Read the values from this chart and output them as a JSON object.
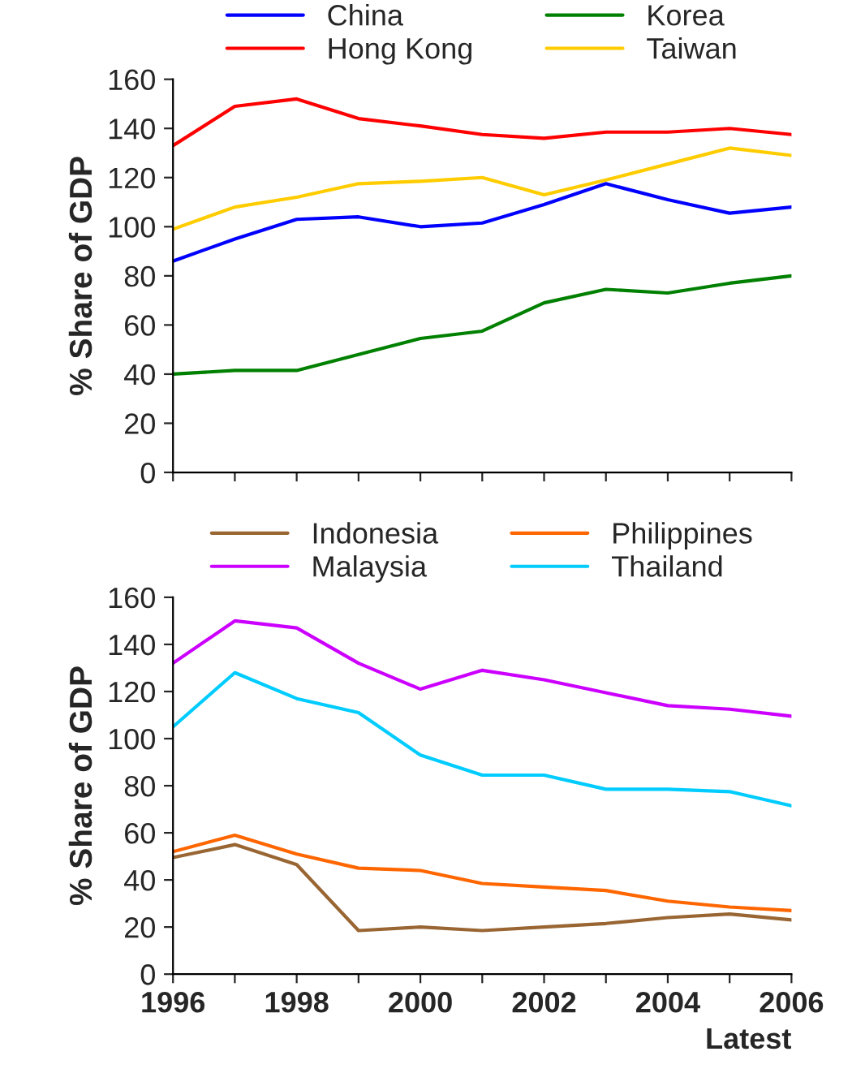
{
  "chart_data": [
    {
      "type": "line",
      "ylabel": "% Share of GDP",
      "x": [
        1996,
        1997,
        1998,
        1999,
        2000,
        2001,
        2002,
        2003,
        2004,
        2005,
        2006
      ],
      "xlim": [
        1996,
        2006
      ],
      "xticks": [
        {
          "value": 1996,
          "label": null
        },
        {
          "value": 1997,
          "label": null
        },
        {
          "value": 1998,
          "label": null
        },
        {
          "value": 1999,
          "label": null
        },
        {
          "value": 2000,
          "label": null
        },
        {
          "value": 2001,
          "label": null
        },
        {
          "value": 2002,
          "label": null
        },
        {
          "value": 2003,
          "label": null
        },
        {
          "value": 2004,
          "label": null
        },
        {
          "value": 2005,
          "label": null
        },
        {
          "value": 2006,
          "label": null
        }
      ],
      "ylim": [
        0,
        160
      ],
      "yticks": [
        0,
        20,
        40,
        60,
        80,
        100,
        120,
        140,
        160
      ],
      "tick_labels": "y",
      "legend": "top",
      "grid": false,
      "series": [
        {
          "name": "China",
          "color": "#0000ff",
          "values": [
            86,
            95,
            103,
            104,
            100,
            101.5,
            109,
            117.5,
            111,
            105.5,
            108
          ]
        },
        {
          "name": "Hong Kong",
          "color": "#ff0000",
          "values": [
            133,
            149,
            152,
            144,
            141,
            137.5,
            136,
            138.5,
            138.5,
            140,
            137.5
          ]
        },
        {
          "name": "Korea",
          "color": "#008000",
          "values": [
            40,
            41.5,
            41.5,
            48,
            54.5,
            57.5,
            69,
            74.5,
            73,
            77,
            80
          ]
        },
        {
          "name": "Taiwan",
          "color": "#ffcc00",
          "values": [
            99,
            108,
            112,
            117.5,
            118.5,
            120,
            113,
            119,
            125.5,
            132,
            129
          ]
        }
      ]
    },
    {
      "type": "line",
      "ylabel": "% Share of GDP",
      "xlabel": "Latest",
      "x": [
        1996,
        1997,
        1998,
        1999,
        2000,
        2001,
        2002,
        2003,
        2004,
        2005,
        2006
      ],
      "xlim": [
        1996,
        2006
      ],
      "xticks": [
        1996,
        {
          "value": 1997,
          "label": null
        },
        1998,
        {
          "value": 1999,
          "label": null
        },
        2000,
        {
          "value": 2001,
          "label": null
        },
        2002,
        {
          "value": 2003,
          "label": null
        },
        2004,
        {
          "value": 2005,
          "label": null
        },
        2006
      ],
      "ylim": [
        0,
        160
      ],
      "yticks": [
        0,
        20,
        40,
        60,
        80,
        100,
        120,
        140,
        160
      ],
      "legend": "top",
      "grid": false,
      "series": [
        {
          "name": "Indonesia",
          "color": "#996633",
          "values": [
            49.5,
            55,
            46.5,
            18.5,
            20,
            18.5,
            20,
            21.5,
            24,
            25.5,
            23
          ]
        },
        {
          "name": "Malaysia",
          "color": "#cc00ff",
          "values": [
            132,
            150,
            147,
            132,
            121,
            129,
            125,
            119.5,
            114,
            112.5,
            109.5
          ]
        },
        {
          "name": "Philippines",
          "color": "#ff6600",
          "values": [
            52,
            59,
            51,
            45,
            44,
            38.5,
            37,
            35.5,
            31,
            28.5,
            27
          ]
        },
        {
          "name": "Thailand",
          "color": "#00ccff",
          "values": [
            105,
            128,
            117,
            111,
            93,
            84.5,
            84.5,
            78.5,
            78.5,
            77.5,
            71.5
          ]
        }
      ]
    }
  ]
}
